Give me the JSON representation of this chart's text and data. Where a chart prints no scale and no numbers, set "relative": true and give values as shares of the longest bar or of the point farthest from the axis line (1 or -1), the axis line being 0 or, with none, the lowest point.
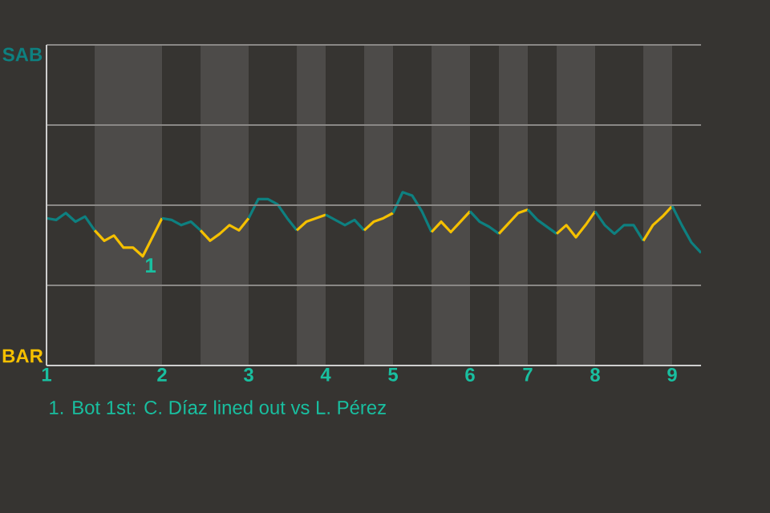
{
  "chart_data": {
    "type": "line",
    "relative": true,
    "categories": [
      "1",
      null,
      null,
      null,
      null,
      null,
      null,
      null,
      null,
      null,
      null,
      null,
      "2",
      null,
      null,
      null,
      null,
      null,
      null,
      null,
      null,
      "3",
      null,
      null,
      null,
      null,
      null,
      null,
      null,
      "4",
      null,
      null,
      null,
      null,
      null,
      null,
      "5",
      null,
      null,
      null,
      null,
      null,
      null,
      null,
      "6",
      null,
      null,
      null,
      null,
      null,
      "7",
      null,
      null,
      null,
      null,
      null,
      null,
      "8",
      null,
      null,
      null,
      null,
      null,
      null,
      null,
      "9",
      null,
      null,
      null
    ],
    "ylim": [
      0,
      1.85
    ],
    "grid": "y",
    "series": [
      {
        "color": "#0e8080",
        "values": [
          0.85,
          0.84,
          0.88,
          0.83,
          0.86,
          0.78,
          null,
          null,
          null,
          null,
          null,
          null,
          null,
          null,
          null,
          null,
          null,
          null,
          null,
          null,
          null,
          null,
          null,
          null,
          null,
          null,
          null,
          null,
          null,
          null,
          null,
          null,
          null,
          null,
          null,
          null,
          null,
          null,
          null,
          null,
          null,
          null,
          null,
          null,
          null,
          null,
          null,
          null,
          null,
          null,
          null,
          null,
          null,
          null,
          null,
          null,
          null,
          null,
          null,
          null,
          null,
          null,
          null,
          null,
          null,
          null,
          null,
          null,
          null
        ]
      },
      {
        "color": "#f5c000",
        "values": [
          null,
          null,
          null,
          null,
          null,
          0.78,
          0.72,
          0.75,
          0.68,
          0.68,
          0.63,
          0.74,
          0.85,
          null,
          null,
          null,
          null,
          null,
          null,
          null,
          null,
          null,
          null,
          null,
          null,
          null,
          null,
          null,
          null,
          null,
          null,
          null,
          null,
          null,
          null,
          null,
          null,
          null,
          null,
          null,
          null,
          null,
          null,
          null,
          null,
          null,
          null,
          null,
          null,
          null,
          null,
          null,
          null,
          null,
          null,
          null,
          null,
          null,
          null,
          null,
          null,
          null,
          null,
          null,
          null,
          null,
          null,
          null,
          null
        ]
      },
      {
        "color": "#0e8080",
        "values": [
          null,
          null,
          null,
          null,
          null,
          null,
          null,
          null,
          null,
          null,
          null,
          null,
          0.85,
          0.84,
          0.81,
          0.83,
          0.78,
          null,
          null,
          null,
          null,
          null,
          null,
          null,
          null,
          null,
          null,
          null,
          null,
          null,
          null,
          null,
          null,
          null,
          null,
          null,
          null,
          null,
          null,
          null,
          null,
          null,
          null,
          null,
          null,
          null,
          null,
          null,
          null,
          null,
          null,
          null,
          null,
          null,
          null,
          null,
          null,
          null,
          null,
          null,
          null,
          null,
          null,
          null,
          null,
          null,
          null,
          null,
          null
        ]
      },
      {
        "color": "#f5c000",
        "values": [
          null,
          null,
          null,
          null,
          null,
          null,
          null,
          null,
          null,
          null,
          null,
          null,
          null,
          null,
          null,
          null,
          0.78,
          0.72,
          0.76,
          0.81,
          0.78,
          0.85,
          null,
          null,
          null,
          null,
          null,
          null,
          null,
          null,
          null,
          null,
          null,
          null,
          null,
          null,
          null,
          null,
          null,
          null,
          null,
          null,
          null,
          null,
          null,
          null,
          null,
          null,
          null,
          null,
          null,
          null,
          null,
          null,
          null,
          null,
          null,
          null,
          null,
          null,
          null,
          null,
          null,
          null,
          null,
          null,
          null,
          null,
          null
        ]
      },
      {
        "color": "#0e8080",
        "values": [
          null,
          null,
          null,
          null,
          null,
          null,
          null,
          null,
          null,
          null,
          null,
          null,
          null,
          null,
          null,
          null,
          null,
          null,
          null,
          null,
          null,
          0.85,
          0.96,
          0.96,
          0.93,
          0.85,
          0.78,
          null,
          null,
          null,
          null,
          null,
          null,
          null,
          null,
          null,
          null,
          null,
          null,
          null,
          null,
          null,
          null,
          null,
          null,
          null,
          null,
          null,
          null,
          null,
          null,
          null,
          null,
          null,
          null,
          null,
          null,
          null,
          null,
          null,
          null,
          null,
          null,
          null,
          null,
          null,
          null,
          null,
          null
        ]
      },
      {
        "color": "#f5c000",
        "values": [
          null,
          null,
          null,
          null,
          null,
          null,
          null,
          null,
          null,
          null,
          null,
          null,
          null,
          null,
          null,
          null,
          null,
          null,
          null,
          null,
          null,
          null,
          null,
          null,
          null,
          null,
          0.78,
          0.83,
          0.85,
          0.87,
          null,
          null,
          null,
          null,
          null,
          null,
          null,
          null,
          null,
          null,
          null,
          null,
          null,
          null,
          null,
          null,
          null,
          null,
          null,
          null,
          null,
          null,
          null,
          null,
          null,
          null,
          null,
          null,
          null,
          null,
          null,
          null,
          null,
          null,
          null,
          null,
          null,
          null,
          null
        ]
      },
      {
        "color": "#0e8080",
        "values": [
          null,
          null,
          null,
          null,
          null,
          null,
          null,
          null,
          null,
          null,
          null,
          null,
          null,
          null,
          null,
          null,
          null,
          null,
          null,
          null,
          null,
          null,
          null,
          null,
          null,
          null,
          null,
          null,
          null,
          0.87,
          0.84,
          0.81,
          0.84,
          0.78,
          null,
          null,
          null,
          null,
          null,
          null,
          null,
          null,
          null,
          null,
          null,
          null,
          null,
          null,
          null,
          null,
          null,
          null,
          null,
          null,
          null,
          null,
          null,
          null,
          null,
          null,
          null,
          null,
          null,
          null,
          null,
          null,
          null,
          null,
          null
        ]
      },
      {
        "color": "#f5c000",
        "values": [
          null,
          null,
          null,
          null,
          null,
          null,
          null,
          null,
          null,
          null,
          null,
          null,
          null,
          null,
          null,
          null,
          null,
          null,
          null,
          null,
          null,
          null,
          null,
          null,
          null,
          null,
          null,
          null,
          null,
          null,
          null,
          null,
          null,
          0.78,
          0.83,
          0.85,
          0.88,
          null,
          null,
          null,
          null,
          null,
          null,
          null,
          null,
          null,
          null,
          null,
          null,
          null,
          null,
          null,
          null,
          null,
          null,
          null,
          null,
          null,
          null,
          null,
          null,
          null,
          null,
          null,
          null,
          null,
          null,
          null,
          null
        ]
      },
      {
        "color": "#0e8080",
        "values": [
          null,
          null,
          null,
          null,
          null,
          null,
          null,
          null,
          null,
          null,
          null,
          null,
          null,
          null,
          null,
          null,
          null,
          null,
          null,
          null,
          null,
          null,
          null,
          null,
          null,
          null,
          null,
          null,
          null,
          null,
          null,
          null,
          null,
          null,
          null,
          null,
          0.88,
          1,
          0.98,
          0.89,
          0.77,
          null,
          null,
          null,
          null,
          null,
          null,
          null,
          null,
          null,
          null,
          null,
          null,
          null,
          null,
          null,
          null,
          null,
          null,
          null,
          null,
          null,
          null,
          null,
          null,
          null,
          null,
          null,
          null
        ]
      },
      {
        "color": "#f5c000",
        "values": [
          null,
          null,
          null,
          null,
          null,
          null,
          null,
          null,
          null,
          null,
          null,
          null,
          null,
          null,
          null,
          null,
          null,
          null,
          null,
          null,
          null,
          null,
          null,
          null,
          null,
          null,
          null,
          null,
          null,
          null,
          null,
          null,
          null,
          null,
          null,
          null,
          null,
          null,
          null,
          null,
          0.77,
          0.83,
          0.77,
          0.83,
          0.89,
          null,
          null,
          null,
          null,
          null,
          null,
          null,
          null,
          null,
          null,
          null,
          null,
          null,
          null,
          null,
          null,
          null,
          null,
          null,
          null,
          null,
          null,
          null,
          null
        ]
      },
      {
        "color": "#0e8080",
        "values": [
          null,
          null,
          null,
          null,
          null,
          null,
          null,
          null,
          null,
          null,
          null,
          null,
          null,
          null,
          null,
          null,
          null,
          null,
          null,
          null,
          null,
          null,
          null,
          null,
          null,
          null,
          null,
          null,
          null,
          null,
          null,
          null,
          null,
          null,
          null,
          null,
          null,
          null,
          null,
          null,
          null,
          null,
          null,
          null,
          0.89,
          0.83,
          0.8,
          0.76,
          null,
          null,
          null,
          null,
          null,
          null,
          null,
          null,
          null,
          null,
          null,
          null,
          null,
          null,
          null,
          null,
          null,
          null,
          null,
          null,
          null
        ]
      },
      {
        "color": "#f5c000",
        "values": [
          null,
          null,
          null,
          null,
          null,
          null,
          null,
          null,
          null,
          null,
          null,
          null,
          null,
          null,
          null,
          null,
          null,
          null,
          null,
          null,
          null,
          null,
          null,
          null,
          null,
          null,
          null,
          null,
          null,
          null,
          null,
          null,
          null,
          null,
          null,
          null,
          null,
          null,
          null,
          null,
          null,
          null,
          null,
          null,
          null,
          null,
          null,
          0.76,
          0.82,
          0.88,
          0.9,
          null,
          null,
          null,
          null,
          null,
          null,
          null,
          null,
          null,
          null,
          null,
          null,
          null,
          null,
          null,
          null,
          null,
          null
        ]
      },
      {
        "color": "#0e8080",
        "values": [
          null,
          null,
          null,
          null,
          null,
          null,
          null,
          null,
          null,
          null,
          null,
          null,
          null,
          null,
          null,
          null,
          null,
          null,
          null,
          null,
          null,
          null,
          null,
          null,
          null,
          null,
          null,
          null,
          null,
          null,
          null,
          null,
          null,
          null,
          null,
          null,
          null,
          null,
          null,
          null,
          null,
          null,
          null,
          null,
          null,
          null,
          null,
          null,
          null,
          null,
          0.9,
          0.84,
          0.8,
          0.76,
          null,
          null,
          null,
          null,
          null,
          null,
          null,
          null,
          null,
          null,
          null,
          null,
          null,
          null,
          null
        ]
      },
      {
        "color": "#f5c000",
        "values": [
          null,
          null,
          null,
          null,
          null,
          null,
          null,
          null,
          null,
          null,
          null,
          null,
          null,
          null,
          null,
          null,
          null,
          null,
          null,
          null,
          null,
          null,
          null,
          null,
          null,
          null,
          null,
          null,
          null,
          null,
          null,
          null,
          null,
          null,
          null,
          null,
          null,
          null,
          null,
          null,
          null,
          null,
          null,
          null,
          null,
          null,
          null,
          null,
          null,
          null,
          null,
          null,
          null,
          0.76,
          0.81,
          0.74,
          0.81,
          0.89,
          null,
          null,
          null,
          null,
          null,
          null,
          null,
          null,
          null,
          null,
          null
        ]
      },
      {
        "color": "#0e8080",
        "values": [
          null,
          null,
          null,
          null,
          null,
          null,
          null,
          null,
          null,
          null,
          null,
          null,
          null,
          null,
          null,
          null,
          null,
          null,
          null,
          null,
          null,
          null,
          null,
          null,
          null,
          null,
          null,
          null,
          null,
          null,
          null,
          null,
          null,
          null,
          null,
          null,
          null,
          null,
          null,
          null,
          null,
          null,
          null,
          null,
          null,
          null,
          null,
          null,
          null,
          null,
          null,
          null,
          null,
          null,
          null,
          null,
          null,
          0.89,
          0.81,
          0.76,
          0.81,
          0.81,
          0.72,
          null,
          null,
          null,
          null,
          null,
          null
        ]
      },
      {
        "color": "#f5c000",
        "values": [
          null,
          null,
          null,
          null,
          null,
          null,
          null,
          null,
          null,
          null,
          null,
          null,
          null,
          null,
          null,
          null,
          null,
          null,
          null,
          null,
          null,
          null,
          null,
          null,
          null,
          null,
          null,
          null,
          null,
          null,
          null,
          null,
          null,
          null,
          null,
          null,
          null,
          null,
          null,
          null,
          null,
          null,
          null,
          null,
          null,
          null,
          null,
          null,
          null,
          null,
          null,
          null,
          null,
          null,
          null,
          null,
          null,
          null,
          null,
          null,
          null,
          null,
          0.72,
          0.81,
          0.86,
          0.92,
          null,
          null,
          null
        ]
      },
      {
        "color": "#0e8080",
        "values": [
          null,
          null,
          null,
          null,
          null,
          null,
          null,
          null,
          null,
          null,
          null,
          null,
          null,
          null,
          null,
          null,
          null,
          null,
          null,
          null,
          null,
          null,
          null,
          null,
          null,
          null,
          null,
          null,
          null,
          null,
          null,
          null,
          null,
          null,
          null,
          null,
          null,
          null,
          null,
          null,
          null,
          null,
          null,
          null,
          null,
          null,
          null,
          null,
          null,
          null,
          null,
          null,
          null,
          null,
          null,
          null,
          null,
          null,
          null,
          null,
          null,
          null,
          null,
          null,
          null,
          0.92,
          0.81,
          0.71,
          0.65
        ]
      }
    ],
    "annotations": [
      "SAB",
      "BAR",
      "1",
      "1. Bot 1st: C. Díaz lined out vs L. Pérez"
    ]
  }
}
